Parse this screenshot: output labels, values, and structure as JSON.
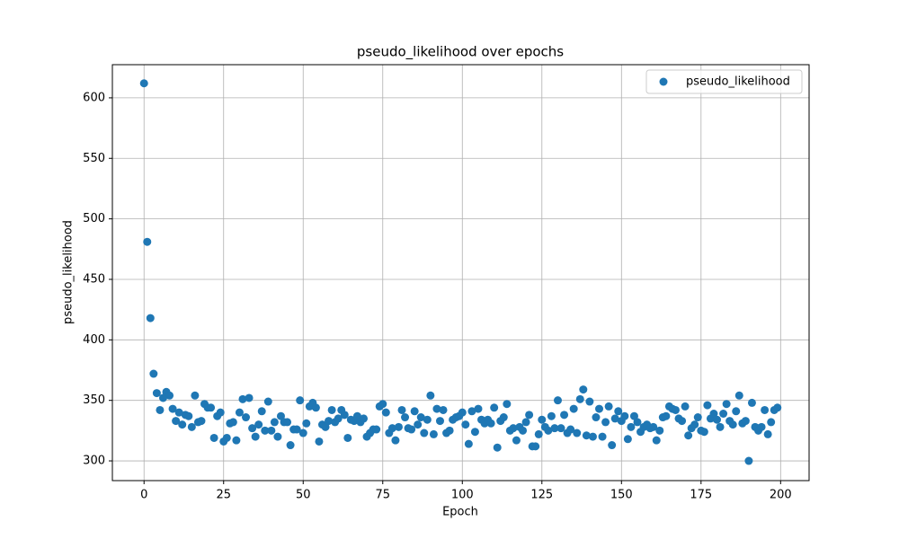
{
  "chart_data": {
    "type": "scatter",
    "title": "pseudo_likelihood over epochs",
    "x_label": "Epoch",
    "y_label": "pseudo_likelihood",
    "xlim": [
      -9.95,
      208.95
    ],
    "ylim": [
      283.7,
      627.4
    ],
    "xticks": [
      0,
      25,
      50,
      75,
      100,
      125,
      150,
      175,
      200
    ],
    "yticks": [
      300,
      350,
      400,
      450,
      500,
      550,
      600
    ],
    "grid": true,
    "legend": "upper right",
    "x": [
      0,
      1,
      2,
      3,
      4,
      5,
      6,
      7,
      8,
      9,
      10,
      11,
      12,
      13,
      14,
      15,
      16,
      17,
      18,
      19,
      20,
      21,
      22,
      23,
      24,
      25,
      26,
      27,
      28,
      29,
      30,
      31,
      32,
      33,
      34,
      35,
      36,
      37,
      38,
      39,
      40,
      41,
      42,
      43,
      44,
      45,
      46,
      47,
      48,
      49,
      50,
      51,
      52,
      53,
      54,
      55,
      56,
      57,
      58,
      59,
      60,
      61,
      62,
      63,
      64,
      65,
      66,
      67,
      68,
      69,
      70,
      71,
      72,
      73,
      74,
      75,
      76,
      77,
      78,
      79,
      80,
      81,
      82,
      83,
      84,
      85,
      86,
      87,
      88,
      89,
      90,
      91,
      92,
      93,
      94,
      95,
      96,
      97,
      98,
      99,
      100,
      101,
      102,
      103,
      104,
      105,
      106,
      107,
      108,
      109,
      110,
      111,
      112,
      113,
      114,
      115,
      116,
      117,
      118,
      119,
      120,
      121,
      122,
      123,
      124,
      125,
      126,
      127,
      128,
      129,
      130,
      131,
      132,
      133,
      134,
      135,
      136,
      137,
      138,
      139,
      140,
      141,
      142,
      143,
      144,
      145,
      146,
      147,
      148,
      149,
      150,
      151,
      152,
      153,
      154,
      155,
      156,
      157,
      158,
      159,
      160,
      161,
      162,
      163,
      164,
      165,
      166,
      167,
      168,
      169,
      170,
      171,
      172,
      173,
      174,
      175,
      176,
      177,
      178,
      179,
      180,
      181,
      182,
      183,
      184,
      185,
      186,
      187,
      188,
      189,
      190,
      191,
      192,
      193,
      194,
      195,
      196,
      197,
      198,
      199
    ],
    "series": [
      {
        "name": "pseudo_likelihood",
        "color": "#1f77b4",
        "values": [
          612,
          481,
          418,
          372,
          356,
          342,
          352,
          357,
          354,
          343,
          333,
          340,
          330,
          338,
          337,
          328,
          354,
          332,
          333,
          347,
          344,
          344,
          319,
          337,
          340,
          316,
          319,
          331,
          332,
          317,
          340,
          351,
          336,
          352,
          327,
          320,
          330,
          341,
          325,
          349,
          325,
          332,
          320,
          337,
          332,
          332,
          313,
          326,
          326,
          350,
          323,
          331,
          345,
          348,
          344,
          316,
          330,
          328,
          333,
          342,
          332,
          335,
          342,
          338,
          319,
          334,
          333,
          337,
          332,
          335,
          320,
          323,
          326,
          326,
          345,
          347,
          340,
          323,
          327,
          317,
          328,
          342,
          336,
          327,
          326,
          341,
          330,
          336,
          323,
          334,
          354,
          322,
          343,
          333,
          342,
          323,
          325,
          334,
          336,
          337,
          340,
          330,
          314,
          341,
          324,
          343,
          334,
          331,
          334,
          331,
          344,
          311,
          333,
          336,
          347,
          325,
          327,
          317,
          328,
          325,
          332,
          338,
          312,
          312,
          322,
          334,
          328,
          325,
          337,
          327,
          350,
          327,
          338,
          323,
          326,
          343,
          323,
          351,
          359,
          321,
          349,
          320,
          336,
          343,
          320,
          332,
          345,
          313,
          335,
          341,
          333,
          337,
          318,
          328,
          337,
          332,
          324,
          328,
          330,
          327,
          328,
          317,
          325,
          336,
          337,
          345,
          343,
          342,
          335,
          333,
          345,
          321,
          327,
          330,
          336,
          325,
          324,
          346,
          335,
          339,
          334,
          328,
          339,
          347,
          333,
          330,
          341,
          354,
          331,
          333,
          300,
          348,
          328,
          325,
          328,
          342,
          322,
          332,
          342,
          344
        ]
      }
    ]
  }
}
